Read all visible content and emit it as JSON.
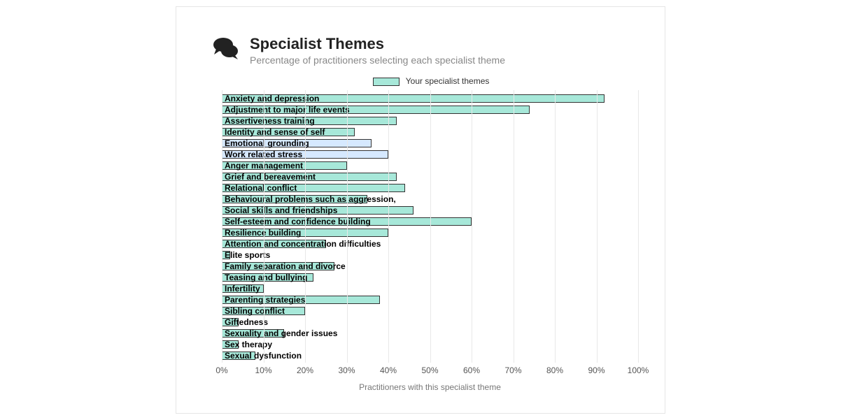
{
  "header": {
    "title": "Specialist Themes",
    "subtitle": "Percentage of practitioners selecting each specialist theme",
    "icon": "comments-icon"
  },
  "legend": {
    "label": "Your specialist themes",
    "swatch_color": "#a7e8d9"
  },
  "chart": {
    "type": "bar-horizontal",
    "xlim": [
      0,
      100
    ],
    "xtick_step": 10,
    "xtick_suffix": "%",
    "xlabel": "Practitioners with this specialist theme",
    "grid_color": "#e8e8e8",
    "background_color": "#ffffff",
    "bar_border_color": "#333333",
    "label_fontsize": 12,
    "label_fontweight": 700,
    "colors": {
      "highlighted": "#a7e8d9",
      "normal": "#d6e9ff"
    },
    "rows": [
      {
        "label": "Anxiety and depression",
        "value": 92,
        "highlighted": true
      },
      {
        "label": "Adjustment to major life events",
        "value": 74,
        "highlighted": true
      },
      {
        "label": "Assertiveness training",
        "value": 42,
        "highlighted": true
      },
      {
        "label": "Identity and sense of self",
        "value": 32,
        "highlighted": true
      },
      {
        "label": "Emotional grounding",
        "value": 36,
        "highlighted": false
      },
      {
        "label": "Work related stress",
        "value": 40,
        "highlighted": false
      },
      {
        "label": "Anger management",
        "value": 30,
        "highlighted": true
      },
      {
        "label": "Grief and bereavement",
        "value": 42,
        "highlighted": true
      },
      {
        "label": "Relational conflict",
        "value": 44,
        "highlighted": true
      },
      {
        "label": "Behavioural problems such as aggression,",
        "value": 35,
        "highlighted": true
      },
      {
        "label": "Social skills and friendships",
        "value": 46,
        "highlighted": true
      },
      {
        "label": "Self-esteem and confidence building",
        "value": 60,
        "highlighted": true
      },
      {
        "label": "Resilience building",
        "value": 40,
        "highlighted": true
      },
      {
        "label": "Attention and concentration difficulties",
        "value": 25,
        "highlighted": true
      },
      {
        "label": "Elite sports",
        "value": 2,
        "highlighted": true
      },
      {
        "label": "Family separation and divorce",
        "value": 27,
        "highlighted": true
      },
      {
        "label": "Teasing and bullying",
        "value": 22,
        "highlighted": true
      },
      {
        "label": "Infertility",
        "value": 10,
        "highlighted": true
      },
      {
        "label": "Parenting strategies",
        "value": 38,
        "highlighted": true
      },
      {
        "label": "Sibling conflict",
        "value": 20,
        "highlighted": true
      },
      {
        "label": "Giftedness",
        "value": 4,
        "highlighted": true
      },
      {
        "label": "Sexuality and gender issues",
        "value": 15,
        "highlighted": true
      },
      {
        "label": "Sex therapy",
        "value": 4,
        "highlighted": true
      },
      {
        "label": "Sexual dysfunction",
        "value": 8,
        "highlighted": true
      }
    ]
  }
}
